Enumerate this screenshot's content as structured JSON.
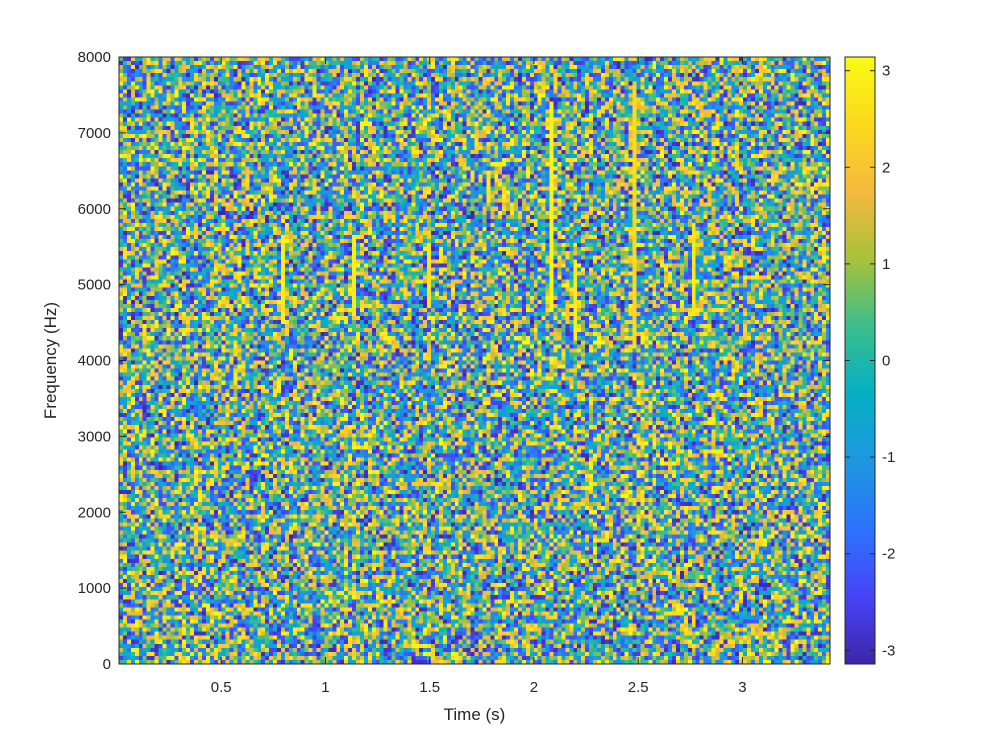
{
  "chart_data": {
    "type": "heatmap",
    "title": "",
    "xlabel": "Time (s)",
    "ylabel": "Frequency (Hz)",
    "xlim": [
      0.01,
      3.42
    ],
    "ylim": [
      0,
      8000
    ],
    "x_ticks": [
      0.5,
      1,
      1.5,
      2,
      2.5,
      3
    ],
    "x_tick_labels": [
      "0.5",
      "1",
      "1.5",
      "2",
      "2.5",
      "3"
    ],
    "y_ticks": [
      0,
      1000,
      2000,
      3000,
      4000,
      5000,
      6000,
      7000,
      8000
    ],
    "y_tick_labels": [
      "0",
      "1000",
      "2000",
      "3000",
      "4000",
      "5000",
      "6000",
      "7000",
      "8000"
    ],
    "colormap": "parula",
    "colorbar": {
      "range": [
        -3.1416,
        3.1416
      ],
      "ticks": [
        -3,
        -2,
        -1,
        0,
        1,
        2,
        3
      ],
      "tick_labels": [
        "-3",
        "-2",
        "-1",
        "0",
        "1",
        "2",
        "3"
      ],
      "placement": "right"
    },
    "grid": false,
    "notes": "STFT phase spectrogram, values uniformly distributed over [-pi, pi] (noise-like texture)",
    "visible_features": [
      {
        "type": "vertical-streak",
        "time": 0.79,
        "freq_range": [
          4500,
          5600
        ],
        "value": 3.0
      },
      {
        "type": "vertical-streak",
        "time": 1.14,
        "freq_range": [
          4600,
          5600
        ],
        "value": 3.0
      },
      {
        "type": "vertical-streak",
        "time": 1.49,
        "freq_range": [
          4700,
          5500
        ],
        "value": 2.8
      },
      {
        "type": "vertical-streak",
        "time": 1.79,
        "freq_range": [
          6100,
          6500
        ],
        "value": 2.9
      },
      {
        "type": "vertical-streak",
        "time": 2.09,
        "freq_range": [
          4700,
          7400
        ],
        "value": 3.1
      },
      {
        "type": "vertical-streak",
        "time": 2.19,
        "freq_range": [
          4300,
          5300
        ],
        "value": 3.0
      },
      {
        "type": "vertical-streak",
        "time": 2.49,
        "freq_range": [
          4200,
          7600
        ],
        "value": 2.6
      },
      {
        "type": "vertical-streak",
        "time": 2.77,
        "freq_range": [
          4600,
          5800
        ],
        "value": 2.9
      }
    ]
  },
  "colors": {
    "colormap_stops": [
      "#3e26a8",
      "#4743f8",
      "#2c73fc",
      "#1e97e0",
      "#05b0c4",
      "#3abe8c",
      "#a6c23a",
      "#f5b93e",
      "#fbd91d",
      "#f9fb15"
    ]
  }
}
